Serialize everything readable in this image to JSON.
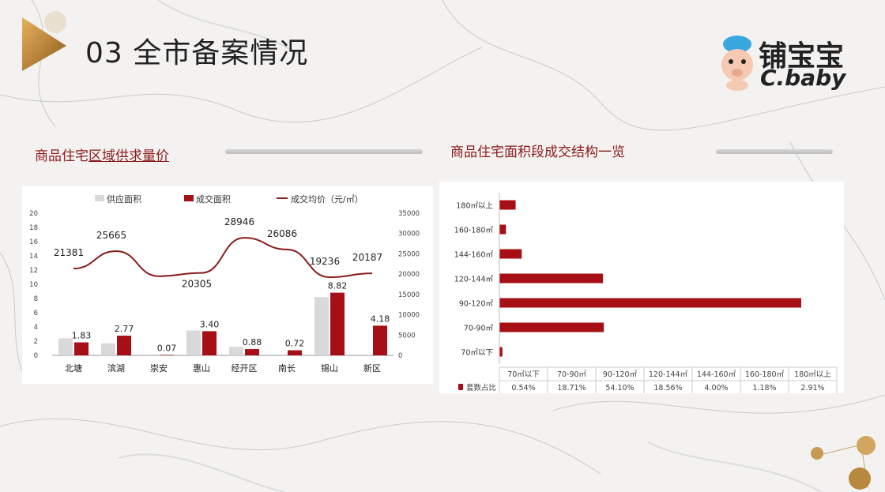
{
  "header": {
    "title": "03 全市备案情况",
    "brand_cn": "铺宝宝",
    "brand_en": "C.baby",
    "icons": [
      "triangle-logo-icon",
      "mascot-icon"
    ]
  },
  "left_section": {
    "title_plain": "商品住宅",
    "title_underlined": "区域供求量价"
  },
  "right_section": {
    "title": "商品住宅面积段成交结构一览"
  },
  "colors": {
    "supply": "#d9d9d9",
    "deal": "#a50f15",
    "price_line": "#8b1a1a",
    "title_red": "#8b1a1a"
  },
  "chart_data": [
    {
      "type": "bar",
      "categories": [
        "北塘",
        "滨湖",
        "崇安",
        "惠山",
        "经开区",
        "南长",
        "锡山",
        "新区"
      ],
      "series": [
        {
          "name": "供应面积",
          "values": [
            2.4,
            1.7,
            0,
            3.5,
            1.2,
            0,
            8.2,
            0
          ]
        },
        {
          "name": "成交面积",
          "values": [
            1.83,
            2.77,
            0.07,
            3.4,
            0.88,
            0.72,
            8.82,
            4.18
          ],
          "labels": [
            "1.83",
            "2.77",
            "0.07",
            "3.40",
            "0.88",
            "0.72",
            "8.82",
            "4.18"
          ]
        },
        {
          "name": "成交均价（元/㎡）",
          "type": "line",
          "axis": "right",
          "values": [
            21381,
            25665,
            19500,
            20305,
            28946,
            26086,
            19236,
            20187
          ],
          "labels": [
            "21381",
            "25665",
            "",
            "20305",
            "28946",
            "26086",
            "19236",
            "20187"
          ]
        }
      ],
      "ylim": [
        0,
        20
      ],
      "yticks": [
        "0",
        "2",
        "4",
        "6",
        "8",
        "10",
        "12",
        "14",
        "16",
        "18",
        "20"
      ],
      "y2lim": [
        0,
        35000
      ],
      "y2ticks": [
        "0",
        "5000",
        "10000",
        "15000",
        "20000",
        "25000",
        "30000",
        "35000"
      ],
      "legend": "top"
    },
    {
      "type": "bar",
      "orientation": "horizontal",
      "categories": [
        "180㎡以上",
        "160-180㎡",
        "144-160㎡",
        "120-144㎡",
        "90-120㎡",
        "70-90㎡",
        "70㎡以下"
      ],
      "values": [
        2.91,
        1.18,
        4.0,
        18.56,
        54.1,
        18.71,
        0.54
      ],
      "table": {
        "row_label": "套数占比",
        "columns": [
          "70㎡以下",
          "70-90㎡",
          "90-120㎡",
          "120-144㎡",
          "144-160㎡",
          "160-180㎡",
          "180㎡以上"
        ],
        "values": [
          "0.54%",
          "18.71%",
          "54.10%",
          "18.56%",
          "4.00%",
          "1.18%",
          "2.91%"
        ]
      }
    }
  ]
}
